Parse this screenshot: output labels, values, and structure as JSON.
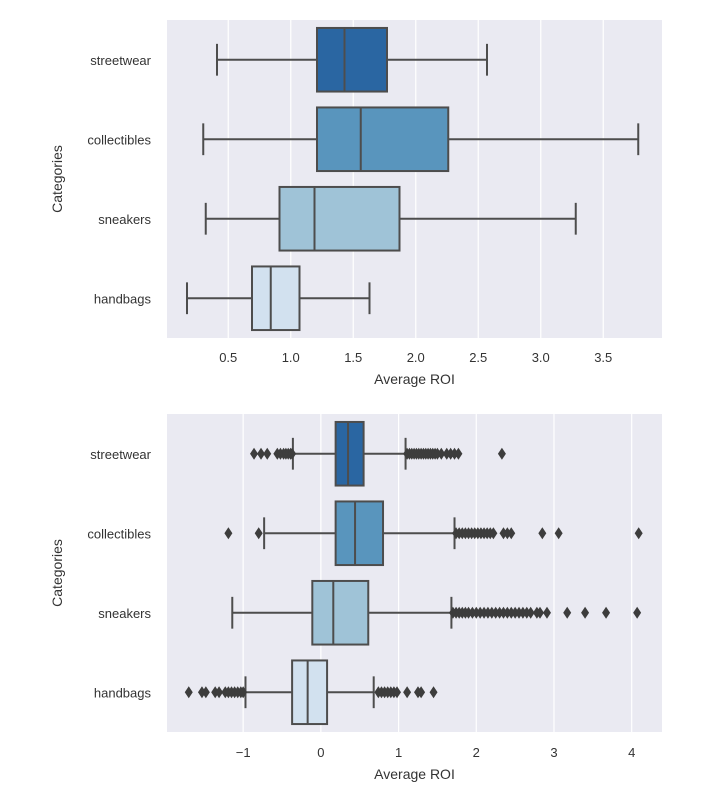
{
  "chart_data": [
    {
      "type": "box",
      "orientation": "horizontal",
      "title": "",
      "xlabel": "Average ROI",
      "ylabel": "Categories",
      "xlim": [
        0.01,
        3.97
      ],
      "xticks": [
        0.5,
        1.0,
        1.5,
        2.0,
        2.5,
        3.0,
        3.5
      ],
      "xtick_labels": [
        "0.5",
        "1.0",
        "1.5",
        "2.0",
        "2.5",
        "3.0",
        "3.5"
      ],
      "grid": true,
      "categories": [
        "streetwear",
        "collectibles",
        "sneakers",
        "handbags"
      ],
      "colors": [
        "#2a66a2",
        "#5995bd",
        "#9fc3d7",
        "#d2e1ef"
      ],
      "edge_color": "#4d4d4d",
      "background": "#eaeaf2",
      "boxes": [
        {
          "category": "streetwear",
          "whislo": 0.41,
          "q1": 1.21,
          "med": 1.43,
          "q3": 1.77,
          "whishi": 2.57,
          "fliers": []
        },
        {
          "category": "collectibles",
          "whislo": 0.3,
          "q1": 1.21,
          "med": 1.56,
          "q3": 2.26,
          "whishi": 3.78,
          "fliers": []
        },
        {
          "category": "sneakers",
          "whislo": 0.32,
          "q1": 0.91,
          "med": 1.19,
          "q3": 1.87,
          "whishi": 3.28,
          "fliers": []
        },
        {
          "category": "handbags",
          "whislo": 0.17,
          "q1": 0.69,
          "med": 0.84,
          "q3": 1.07,
          "whishi": 1.63,
          "fliers": []
        }
      ]
    },
    {
      "type": "box",
      "orientation": "horizontal",
      "title": "",
      "xlabel": "Average ROI",
      "ylabel": "Categories",
      "xlim": [
        -1.98,
        4.39
      ],
      "xticks": [
        -1,
        0,
        1,
        2,
        3,
        4
      ],
      "xtick_labels": [
        "−1",
        "0",
        "1",
        "2",
        "3",
        "4"
      ],
      "grid": true,
      "categories": [
        "streetwear",
        "collectibles",
        "sneakers",
        "handbags"
      ],
      "colors": [
        "#2a66a2",
        "#5995bd",
        "#9fc3d7",
        "#d2e1ef"
      ],
      "edge_color": "#4d4d4d",
      "background": "#eaeaf2",
      "boxes": [
        {
          "category": "streetwear",
          "whislo": -0.36,
          "q1": 0.19,
          "med": 0.35,
          "q3": 0.55,
          "whishi": 1.09,
          "fliers": [
            -0.86,
            -0.77,
            -0.69,
            -0.56,
            -0.52,
            -0.48,
            -0.45,
            -0.42,
            -0.39,
            -0.37,
            1.11,
            1.14,
            1.17,
            1.2,
            1.23,
            1.26,
            1.29,
            1.32,
            1.35,
            1.38,
            1.41,
            1.44,
            1.47,
            1.5,
            1.55,
            1.62,
            1.67,
            1.72,
            1.77,
            2.33
          ]
        },
        {
          "category": "collectibles",
          "whislo": -0.73,
          "q1": 0.19,
          "med": 0.44,
          "q3": 0.8,
          "whishi": 1.72,
          "fliers": [
            -1.19,
            -0.8,
            1.74,
            1.78,
            1.82,
            1.86,
            1.9,
            1.94,
            1.98,
            2.02,
            2.06,
            2.1,
            2.14,
            2.18,
            2.22,
            2.35,
            2.4,
            2.45,
            2.85,
            3.06,
            4.09
          ]
        },
        {
          "category": "sneakers",
          "whislo": -1.14,
          "q1": -0.11,
          "med": 0.16,
          "q3": 0.61,
          "whishi": 1.68,
          "fliers": [
            1.7,
            1.74,
            1.78,
            1.82,
            1.86,
            1.9,
            1.95,
            2.0,
            2.05,
            2.1,
            2.15,
            2.2,
            2.25,
            2.3,
            2.35,
            2.4,
            2.45,
            2.5,
            2.55,
            2.6,
            2.65,
            2.7,
            2.78,
            2.82,
            2.91,
            3.17,
            3.4,
            3.67,
            4.07
          ]
        },
        {
          "category": "handbags",
          "whislo": -0.97,
          "q1": -0.37,
          "med": -0.17,
          "q3": 0.08,
          "whishi": 0.68,
          "fliers": [
            -1.7,
            -1.53,
            -1.48,
            -1.36,
            -1.31,
            -1.23,
            -1.19,
            -1.15,
            -1.11,
            -1.07,
            -1.03,
            -1.0,
            0.74,
            0.78,
            0.82,
            0.86,
            0.9,
            0.94,
            0.98,
            1.11,
            1.25,
            1.29,
            1.45
          ]
        }
      ]
    }
  ]
}
